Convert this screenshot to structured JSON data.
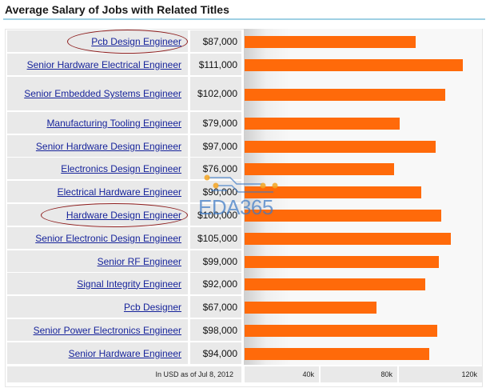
{
  "page": {
    "title": "Average Salary of Jobs with Related Titles",
    "footer_note": "In USD as of Jul 8, 2012",
    "watermark_text": "EDA365"
  },
  "colors": {
    "bar": "#ff6a0a",
    "link": "#17249b",
    "row_bg": "#e9e9e9",
    "highlight_circle": "#8d1d1d"
  },
  "chart_data": {
    "type": "bar",
    "orientation": "horizontal",
    "categories": [
      "Pcb Design Engineer",
      "Senior Hardware Electrical Engineer",
      "Senior Embedded Systems Engineer",
      "Manufacturing Tooling Engineer",
      "Senior Hardware Design Engineer",
      "Electronics Design Engineer",
      "Electrical Hardware Engineer",
      "Hardware Design Engineer",
      "Senior Electronic Design Engineer",
      "Senior RF Engineer",
      "Signal Integrity Engineer",
      "Pcb Designer",
      "Senior Power Electronics Engineer",
      "Senior Hardware Engineer"
    ],
    "values": [
      87000,
      111000,
      102000,
      79000,
      97000,
      76000,
      90000,
      100000,
      105000,
      99000,
      92000,
      67000,
      98000,
      94000
    ],
    "value_labels": [
      "$87,000",
      "$111,000",
      "$102,000",
      "$79,000",
      "$97,000",
      "$76,000",
      "$90,000",
      "$100,000",
      "$105,000",
      "$99,000",
      "$92,000",
      "$67,000",
      "$98,000",
      "$94,000"
    ],
    "highlighted": [
      "Pcb Design Engineer",
      "Hardware Design Engineer"
    ],
    "x_ticks": [
      "40k",
      "80k",
      "120k"
    ],
    "xlim": [
      0,
      120000
    ],
    "grid": false
  }
}
